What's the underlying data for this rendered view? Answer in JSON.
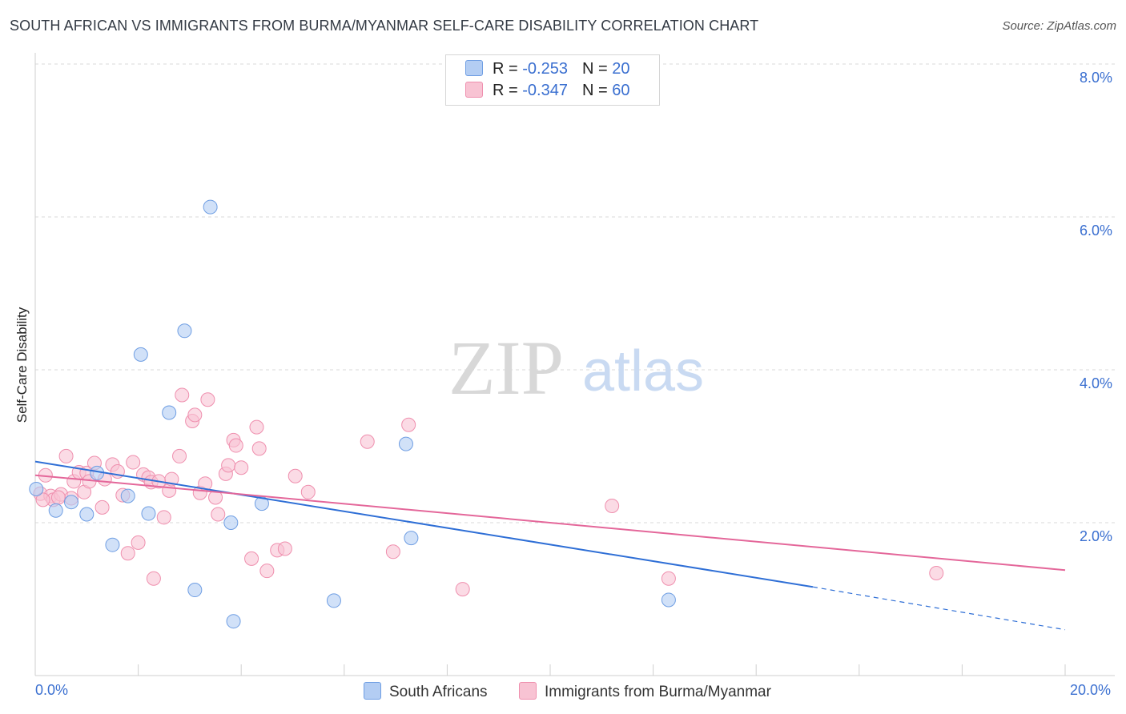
{
  "title": "SOUTH AFRICAN VS IMMIGRANTS FROM BURMA/MYANMAR SELF-CARE DISABILITY CORRELATION CHART",
  "source": "Source: ZipAtlas.com",
  "watermark": {
    "zip": "ZIP",
    "atlas": "atlas"
  },
  "colors": {
    "blue_fill": "#b3cdf3",
    "blue_stroke": "#6f9ee3",
    "blue_line": "#2f6fd6",
    "pink_fill": "#f8c3d3",
    "pink_stroke": "#ef8fae",
    "pink_line": "#e4679a",
    "tick_text": "#3a6fd0",
    "grid": "#d9d9d9"
  },
  "legend": {
    "rows": [
      {
        "r_label": "R = ",
        "r_value": "-0.253",
        "n_label": "N = ",
        "n_value": "20",
        "color": "#b3cdf3",
        "stroke": "#6f9ee3"
      },
      {
        "r_label": "R = ",
        "r_value": "-0.347",
        "n_label": "N = ",
        "n_value": "60",
        "color": "#f8c3d3",
        "stroke": "#ef8fae"
      }
    ]
  },
  "chart_data": {
    "type": "scatter",
    "title": "SOUTH AFRICAN VS IMMIGRANTS FROM BURMA/MYANMAR SELF-CARE DISABILITY CORRELATION CHART",
    "xlabel": "",
    "ylabel": "Self-Care Disability",
    "xlim": [
      0,
      20
    ],
    "ylim": [
      0,
      8.3
    ],
    "x_tick_labels": [
      "0.0%",
      "20.0%"
    ],
    "y_ticks": [
      2,
      4,
      6,
      8
    ],
    "y_tick_labels": [
      "2.0%",
      "4.0%",
      "6.0%",
      "8.0%"
    ],
    "series": [
      {
        "name": "South Africans",
        "r": -0.253,
        "n": 20,
        "points": [
          [
            0.02,
            2.44
          ],
          [
            0.4,
            2.16
          ],
          [
            0.7,
            2.27
          ],
          [
            1.0,
            2.11
          ],
          [
            1.2,
            2.65
          ],
          [
            1.5,
            1.71
          ],
          [
            1.8,
            2.35
          ],
          [
            2.05,
            4.2
          ],
          [
            2.2,
            2.12
          ],
          [
            2.6,
            3.44
          ],
          [
            2.9,
            4.51
          ],
          [
            3.1,
            1.12
          ],
          [
            3.4,
            6.13
          ],
          [
            3.8,
            2.0
          ],
          [
            3.85,
            0.71
          ],
          [
            4.4,
            2.25
          ],
          [
            5.8,
            0.98
          ],
          [
            7.2,
            3.03
          ],
          [
            7.3,
            1.8
          ],
          [
            12.3,
            0.99
          ]
        ],
        "trend": {
          "x": [
            0,
            15.1
          ],
          "y": [
            2.8,
            1.16
          ],
          "dashed_x": [
            15.1,
            20
          ],
          "dashed_y": [
            1.16,
            0.6
          ]
        }
      },
      {
        "name": "Immigrants from Burma/Myanmar",
        "r": -0.347,
        "n": 60,
        "points": [
          [
            0.1,
            2.38
          ],
          [
            0.2,
            2.62
          ],
          [
            0.3,
            2.35
          ],
          [
            0.35,
            2.3
          ],
          [
            0.5,
            2.37
          ],
          [
            0.6,
            2.87
          ],
          [
            0.7,
            2.32
          ],
          [
            0.75,
            2.54
          ],
          [
            0.85,
            2.66
          ],
          [
            0.95,
            2.4
          ],
          [
            1.0,
            2.65
          ],
          [
            1.05,
            2.54
          ],
          [
            1.15,
            2.78
          ],
          [
            1.3,
            2.2
          ],
          [
            1.35,
            2.57
          ],
          [
            1.5,
            2.76
          ],
          [
            1.6,
            2.67
          ],
          [
            1.7,
            2.36
          ],
          [
            1.8,
            1.6
          ],
          [
            1.9,
            2.79
          ],
          [
            2.0,
            1.74
          ],
          [
            2.1,
            2.63
          ],
          [
            2.2,
            2.59
          ],
          [
            2.25,
            2.53
          ],
          [
            2.3,
            1.27
          ],
          [
            2.4,
            2.54
          ],
          [
            2.5,
            2.07
          ],
          [
            2.6,
            2.42
          ],
          [
            2.65,
            2.57
          ],
          [
            2.8,
            2.87
          ],
          [
            2.85,
            3.67
          ],
          [
            3.05,
            3.33
          ],
          [
            3.1,
            3.41
          ],
          [
            3.2,
            2.39
          ],
          [
            3.3,
            2.51
          ],
          [
            3.35,
            3.61
          ],
          [
            3.5,
            2.33
          ],
          [
            3.55,
            2.11
          ],
          [
            3.7,
            2.64
          ],
          [
            3.75,
            2.75
          ],
          [
            3.85,
            3.08
          ],
          [
            3.9,
            3.01
          ],
          [
            4.0,
            2.72
          ],
          [
            4.2,
            1.53
          ],
          [
            4.3,
            3.25
          ],
          [
            4.35,
            2.97
          ],
          [
            4.5,
            1.37
          ],
          [
            4.7,
            1.64
          ],
          [
            4.85,
            1.66
          ],
          [
            5.05,
            2.61
          ],
          [
            5.3,
            2.4
          ],
          [
            6.45,
            3.06
          ],
          [
            6.95,
            1.62
          ],
          [
            7.25,
            3.28
          ],
          [
            8.3,
            1.13
          ],
          [
            11.2,
            2.22
          ],
          [
            12.3,
            1.27
          ],
          [
            17.5,
            1.34
          ],
          [
            0.15,
            2.3
          ],
          [
            0.45,
            2.33
          ]
        ],
        "trend": {
          "x": [
            0,
            20
          ],
          "y": [
            2.62,
            1.38
          ]
        }
      }
    ]
  },
  "bottom_legend": [
    {
      "label": "South Africans",
      "color": "#b3cdf3",
      "stroke": "#6f9ee3"
    },
    {
      "label": "Immigrants from Burma/Myanmar",
      "color": "#f8c3d3",
      "stroke": "#ef8fae"
    }
  ]
}
